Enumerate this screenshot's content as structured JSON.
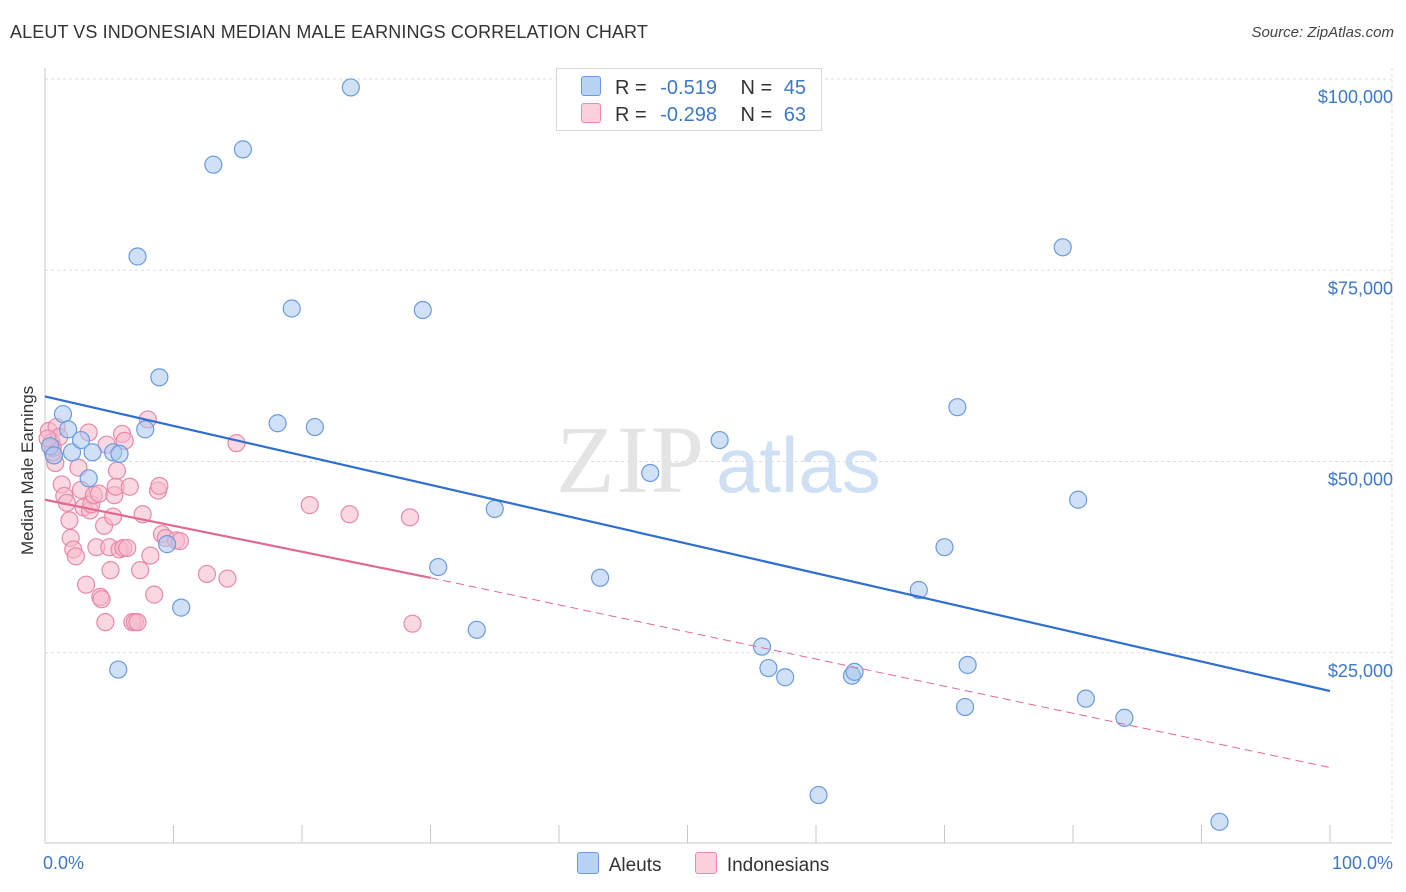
{
  "header": {
    "title": "ALEUT VS INDONESIAN MEDIAN MALE EARNINGS CORRELATION CHART",
    "source": "Source: ZipAtlas.com"
  },
  "watermark": {
    "zip": "ZIP",
    "atlas": "atlas"
  },
  "legend": {
    "r_label": "R =",
    "n_label": "N =",
    "aleut_r": "-0.519",
    "aleut_n": "45",
    "indo_r": "-0.298",
    "indo_n": "63"
  },
  "bottom_legend": {
    "aleut": "Aleuts",
    "indo": "Indonesians"
  },
  "colors": {
    "aleut_fill": "#a9c8f0",
    "aleut_stroke": "#6a9be0",
    "aleut_line": "#2f6fcf",
    "indo_fill": "#f6b8cb",
    "indo_stroke": "#e88aa8",
    "indo_line": "#e06a92",
    "axis_text": "#3d78c9",
    "grid": "#dddddd"
  },
  "chart_data": {
    "type": "scatter",
    "title": "ALEUT VS INDONESIAN MEDIAN MALE EARNINGS CORRELATION CHART",
    "xlabel": "",
    "ylabel": "Median Male Earnings",
    "xlim": [
      0,
      100
    ],
    "ylim": [
      0,
      103000
    ],
    "x_tick_labels": [
      "0.0%",
      "100.0%"
    ],
    "y_ticks": [
      {
        "value": 25000,
        "label": "$25,000"
      },
      {
        "value": 50000,
        "label": "$50,000"
      },
      {
        "value": 75000,
        "label": "$75,000"
      },
      {
        "value": 100000,
        "label": "$100,000"
      }
    ],
    "series": [
      {
        "name": "Aleuts",
        "R": -0.519,
        "N": 45,
        "trend": {
          "x0": 0,
          "y0": 58500,
          "x1": 100,
          "y1": 20000
        },
        "points": [
          [
            0.4,
            52000
          ],
          [
            0.7,
            50800
          ],
          [
            1.4,
            56200
          ],
          [
            1.8,
            54200
          ],
          [
            2.1,
            51200
          ],
          [
            2.8,
            52800
          ],
          [
            3.4,
            47800
          ],
          [
            3.7,
            51200
          ],
          [
            5.3,
            51200
          ],
          [
            5.8,
            51000
          ],
          [
            5.7,
            22800
          ],
          [
            7.2,
            76800
          ],
          [
            7.8,
            54200
          ],
          [
            8.9,
            61000
          ],
          [
            9.5,
            39200
          ],
          [
            10.6,
            30900
          ],
          [
            13.1,
            88800
          ],
          [
            15.4,
            90800
          ],
          [
            18.1,
            55000
          ],
          [
            19.2,
            70000
          ],
          [
            21.0,
            54500
          ],
          [
            23.8,
            98900
          ],
          [
            29.4,
            69800
          ],
          [
            30.6,
            36200
          ],
          [
            33.6,
            28000
          ],
          [
            35.0,
            43800
          ],
          [
            43.2,
            34800
          ],
          [
            47.1,
            48500
          ],
          [
            52.5,
            52800
          ],
          [
            55.8,
            25800
          ],
          [
            56.3,
            23000
          ],
          [
            57.6,
            21800
          ],
          [
            60.2,
            6400
          ],
          [
            62.8,
            22000
          ],
          [
            63.0,
            22500
          ],
          [
            68.0,
            33200
          ],
          [
            70.0,
            38800
          ],
          [
            71.0,
            57100
          ],
          [
            71.6,
            17900
          ],
          [
            71.8,
            23400
          ],
          [
            79.2,
            78000
          ],
          [
            80.4,
            45000
          ],
          [
            81.0,
            19000
          ],
          [
            84.0,
            16500
          ],
          [
            91.4,
            2900
          ]
        ]
      },
      {
        "name": "Indonesians",
        "R": -0.298,
        "N": 63,
        "trend": {
          "x0": 0,
          "y0": 45000,
          "x1": 30,
          "y1": 34800,
          "x_dash_end": 100,
          "y_dash_end": 10000
        },
        "points": [
          [
            0.3,
            54000
          ],
          [
            0.5,
            52500
          ],
          [
            0.8,
            49800
          ],
          [
            0.6,
            51200
          ],
          [
            0.9,
            54500
          ],
          [
            1.1,
            53200
          ],
          [
            1.3,
            47000
          ],
          [
            1.5,
            45500
          ],
          [
            1.7,
            44600
          ],
          [
            1.9,
            42300
          ],
          [
            2.0,
            40000
          ],
          [
            2.2,
            38500
          ],
          [
            2.4,
            37600
          ],
          [
            2.6,
            49200
          ],
          [
            2.8,
            46300
          ],
          [
            3.0,
            44000
          ],
          [
            3.2,
            33900
          ],
          [
            3.4,
            53800
          ],
          [
            3.5,
            43600
          ],
          [
            3.6,
            44400
          ],
          [
            3.8,
            45600
          ],
          [
            4.0,
            38800
          ],
          [
            4.2,
            45800
          ],
          [
            4.3,
            32300
          ],
          [
            4.4,
            32000
          ],
          [
            4.6,
            41600
          ],
          [
            4.7,
            29000
          ],
          [
            4.8,
            52200
          ],
          [
            5.0,
            38800
          ],
          [
            5.1,
            35800
          ],
          [
            5.3,
            42800
          ],
          [
            5.4,
            45600
          ],
          [
            5.5,
            46700
          ],
          [
            5.6,
            48800
          ],
          [
            5.8,
            38500
          ],
          [
            6.0,
            53600
          ],
          [
            6.1,
            38700
          ],
          [
            6.2,
            52700
          ],
          [
            6.4,
            38700
          ],
          [
            6.6,
            46700
          ],
          [
            6.8,
            29000
          ],
          [
            7.0,
            29000
          ],
          [
            7.2,
            29000
          ],
          [
            7.4,
            35800
          ],
          [
            7.6,
            43100
          ],
          [
            8.0,
            55500
          ],
          [
            8.2,
            37700
          ],
          [
            8.5,
            32600
          ],
          [
            8.8,
            46200
          ],
          [
            8.9,
            46800
          ],
          [
            9.1,
            40500
          ],
          [
            9.4,
            40000
          ],
          [
            10.2,
            39700
          ],
          [
            10.5,
            39600
          ],
          [
            12.6,
            35300
          ],
          [
            14.2,
            34700
          ],
          [
            14.9,
            52400
          ],
          [
            20.6,
            44300
          ],
          [
            23.7,
            43100
          ],
          [
            28.4,
            42700
          ],
          [
            28.6,
            28800
          ],
          [
            0.6,
            51800
          ],
          [
            0.2,
            53000
          ]
        ]
      }
    ]
  }
}
